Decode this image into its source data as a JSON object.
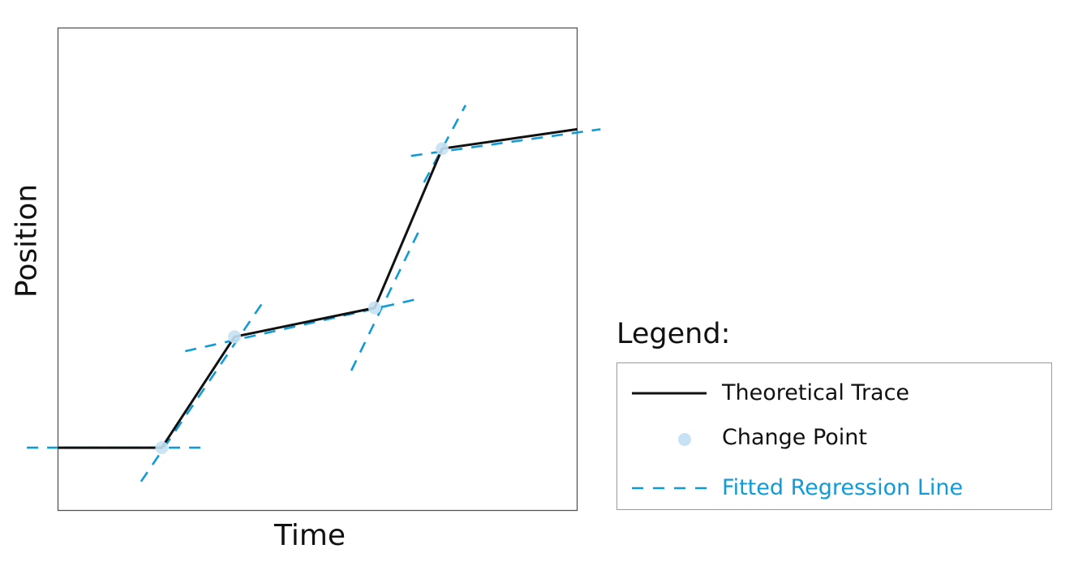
{
  "axes": {
    "x_label": "Time",
    "y_label": "Position"
  },
  "legend": {
    "title": "Legend:",
    "items": [
      {
        "label": "Theoretical Trace",
        "marker": "solid-line",
        "color": "#111111"
      },
      {
        "label": "Change Point",
        "marker": "circle",
        "color": "#c6e2f4"
      },
      {
        "label": "Fitted Regression Line",
        "marker": "dashed-line",
        "color": "#0f9bd7"
      }
    ]
  },
  "colors": {
    "trace": "#111111",
    "change_point": "#c6e2f4",
    "fit": "#0f9bd7",
    "frame": "#555555"
  },
  "chart_data": {
    "type": "line",
    "title": "",
    "xlabel": "Time",
    "ylabel": "Position",
    "xlim": [
      0,
      1
    ],
    "ylim": [
      0,
      1
    ],
    "grid": false,
    "legend_position": "outside-right",
    "ticks": "none",
    "series": [
      {
        "name": "Theoretical Trace",
        "x": [
          0,
          0.2,
          0.34,
          0.61,
          0.74,
          1
        ],
        "y": [
          0.13,
          0.13,
          0.36,
          0.42,
          0.75,
          0.79
        ]
      }
    ],
    "change_points": {
      "x": [
        0.2,
        0.34,
        0.61,
        0.74
      ],
      "y": [
        0.13,
        0.36,
        0.42,
        0.75
      ]
    },
    "fitted_segments": [
      {
        "x": [
          -0.06,
          0.275
        ],
        "y": [
          0.13,
          0.13
        ]
      },
      {
        "x": [
          0.16,
          0.4
        ],
        "y": [
          0.06,
          0.44
        ]
      },
      {
        "x": [
          0.245,
          0.7
        ],
        "y": [
          0.33,
          0.44
        ]
      },
      {
        "x": [
          0.565,
          0.7
        ],
        "y": [
          0.29,
          0.59
        ]
      },
      {
        "x": [
          0.68,
          1.045
        ],
        "y": [
          0.735,
          0.79
        ]
      },
      {
        "x": [
          0.705,
          0.785
        ],
        "y": [
          0.68,
          0.84
        ]
      }
    ]
  }
}
